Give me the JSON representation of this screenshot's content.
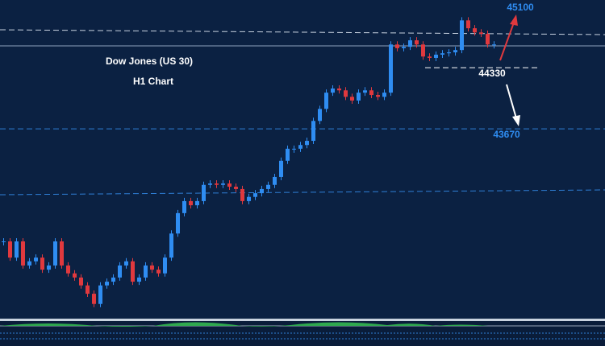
{
  "chart_data": {
    "type": "candlestick",
    "title": "Dow Jones (US 30)",
    "subtitle": "H1 Chart",
    "levels": [
      45100,
      44330,
      43670
    ],
    "up_color": "#2f8df2",
    "down_color": "#e0393e",
    "ylim": [
      41630,
      45060
    ],
    "values": [
      42455,
      42280,
      42455,
      42195,
      42240,
      42280,
      42150,
      42195,
      42455,
      42195,
      42110,
      42065,
      41980,
      41890,
      41780,
      41980,
      42020,
      42065,
      42195,
      42240,
      42020,
      42065,
      42195,
      42150,
      42110,
      42280,
      42540,
      42760,
      42890,
      42845,
      42890,
      43065,
      43080,
      43065,
      43080,
      43045,
      43020,
      42890,
      42935,
      42975,
      43020,
      43065,
      43150,
      43325,
      43455,
      43455,
      43495,
      43540,
      43755,
      43885,
      44060,
      44105,
      44085,
      44015,
      43975,
      44060,
      44085,
      44035,
      44015,
      44060,
      44580,
      44540,
      44555,
      44625,
      44580,
      44450,
      44435,
      44470,
      44485,
      44495,
      44520,
      44840,
      44755,
      44710,
      44695,
      44580,
      44580
    ]
  }
}
